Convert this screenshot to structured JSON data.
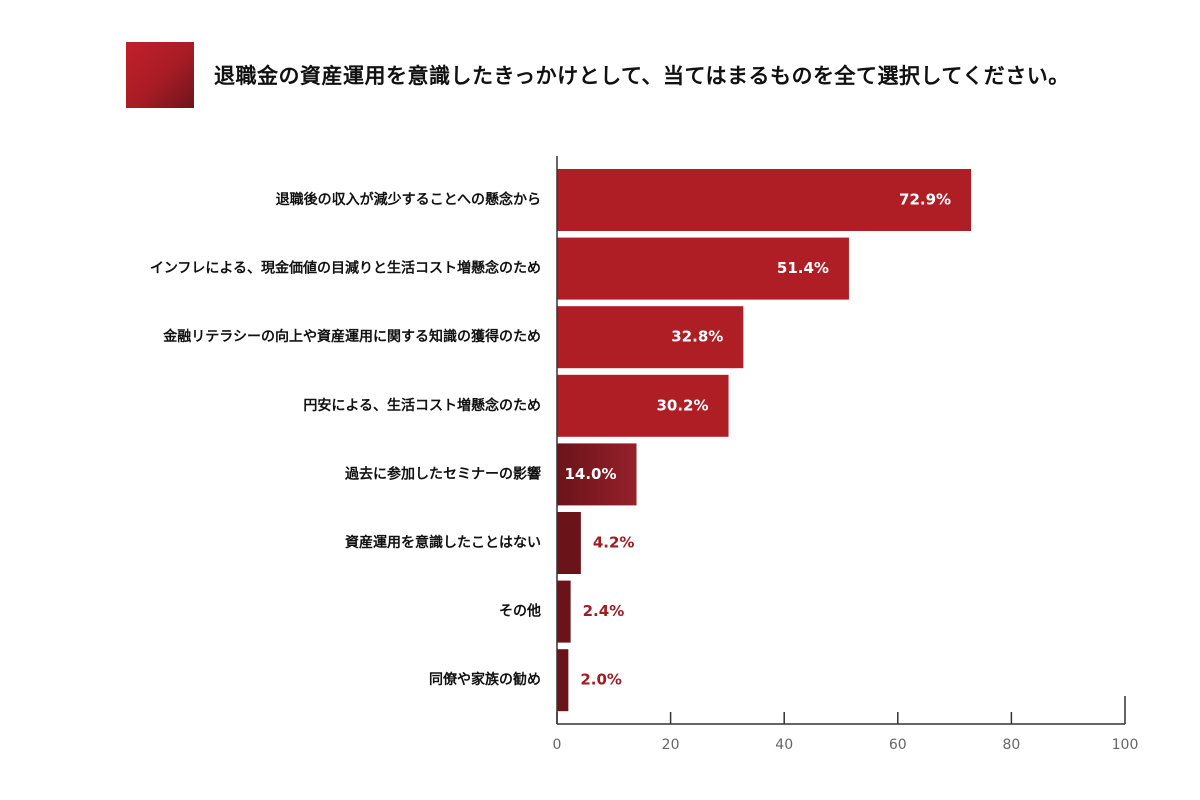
{
  "title": "退職金の資産運用を意識したきっかけとして、当てはまるものを全て選択してください。",
  "colors": {
    "accent": "#b01e25",
    "bar_high": "#b01e25",
    "bar_mid": "#7b1a22",
    "bar_low": "#6a1319",
    "label_outside": "#9f1c24",
    "axis": "#333333"
  },
  "chart_data": {
    "type": "bar",
    "orientation": "horizontal",
    "title": "退職金の資産運用を意識したきっかけとして、当てはまるものを全て選択してください。",
    "categories": [
      "退職後の収入が減少することへの懸念から",
      "インフレによる、現金価値の目減りと生活コスト増懸念のため",
      "金融リテラシーの向上や資産運用に関する知識の獲得のため",
      "円安による、生活コスト増懸念のため",
      "過去に参加したセミナーの影響",
      "資産運用を意識したことはない",
      "その他",
      "同僚や家族の勧め"
    ],
    "values": [
      72.9,
      51.4,
      32.8,
      30.2,
      14.0,
      4.2,
      2.4,
      2.0
    ],
    "value_labels": [
      "72.9%",
      "51.4%",
      "32.8%",
      "30.2%",
      "14.0%",
      "4.2%",
      "2.4%",
      "2.0%"
    ],
    "xlim": [
      0,
      100
    ],
    "xticks": [
      "0",
      "20",
      "40",
      "60",
      "80",
      "100"
    ],
    "xlabel": "",
    "ylabel": "",
    "grid": false,
    "legend": "none"
  }
}
